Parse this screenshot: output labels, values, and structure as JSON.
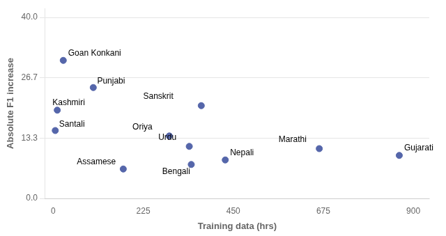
{
  "chart_data": {
    "type": "scatter",
    "xlabel": "Training data (hrs)",
    "ylabel": "Absolute F1 increase",
    "labels": [
      "Goan Konkani",
      "Punjabi",
      "Kashmiri",
      "Santali",
      "Sanskrit",
      "Oriya",
      "Urdu",
      "Bengali",
      "Assamese",
      "Nepali",
      "Marathi",
      "Gujarati"
    ],
    "x": [
      25,
      100,
      10,
      5,
      370,
      290,
      340,
      345,
      175,
      430,
      665,
      865
    ],
    "values": [
      30.5,
      24.5,
      19.5,
      15.0,
      20.5,
      13.8,
      11.5,
      7.5,
      6.5,
      8.5,
      11.0,
      9.5
    ],
    "color": "#5566aa",
    "xlim": [
      -20,
      940
    ],
    "ylim": [
      0.0,
      42.0
    ],
    "xticks": [
      0,
      225,
      450,
      675,
      900
    ],
    "yticks": [
      {
        "value": 0.0,
        "label": "0.0"
      },
      13.3,
      26.7,
      {
        "value": 40.0,
        "label": "40.0"
      }
    ],
    "grid": "y"
  }
}
